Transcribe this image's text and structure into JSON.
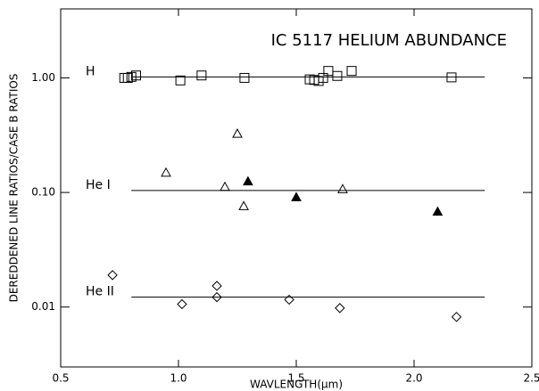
{
  "chart_data": {
    "type": "scatter",
    "title": "IC 5117 HELIUM ABUNDANCE",
    "xlabel": "WAVLENGTH(μm)",
    "ylabel": "DEREDDENED LINE RATIOS/CASE B RATIOS",
    "xlim": [
      0.5,
      2.5
    ],
    "xticks": [
      0.5,
      {
        "value": 1.0,
        "label": "1.0"
      },
      1.5,
      {
        "value": 2.0,
        "label": "2.0"
      },
      2.5
    ],
    "ylim": [
      0.003,
      4
    ],
    "yticks": [
      {
        "value": 0.01,
        "label": "0.01"
      },
      {
        "value": 0.1,
        "label": "0.10"
      },
      {
        "value": 1,
        "label": "1.00"
      }
    ],
    "log_y": true,
    "color": "#000000",
    "series": [
      {
        "name": "H",
        "marker": "square",
        "level": 1.02,
        "level_x": [
          0.8,
          2.3
        ],
        "x": [
          0.77,
          0.785,
          0.8,
          0.82,
          1.008,
          1.098,
          1.28,
          1.557,
          1.576,
          1.595,
          1.614,
          1.636,
          1.674,
          1.735,
          2.159
        ],
        "values": [
          1.0,
          1.0,
          1.02,
          1.05,
          0.95,
          1.05,
          1.0,
          0.97,
          0.96,
          0.94,
          1.0,
          1.15,
          1.04,
          1.15,
          1.01
        ]
      },
      {
        "name": "He I",
        "marker": "triangle",
        "level": 0.104,
        "level_x": [
          0.8,
          2.3
        ],
        "x": [
          0.947,
          1.197,
          1.25,
          1.277,
          1.697,
          1.295,
          1.5,
          2.1
        ],
        "values": [
          0.149,
          0.112,
          0.326,
          0.076,
          0.107,
          0.125,
          0.091,
          0.068
        ],
        "filled": [
          false,
          false,
          false,
          false,
          false,
          true,
          true,
          true
        ]
      },
      {
        "name": "He II",
        "marker": "diamond",
        "level": 0.0122,
        "level_x": [
          0.8,
          2.3
        ],
        "x": [
          0.72,
          1.015,
          1.163,
          1.163,
          1.47,
          1.685,
          2.18
        ],
        "values": [
          0.019,
          0.0106,
          0.0122,
          0.0153,
          0.0116,
          0.0098,
          0.0082
        ]
      }
    ]
  }
}
